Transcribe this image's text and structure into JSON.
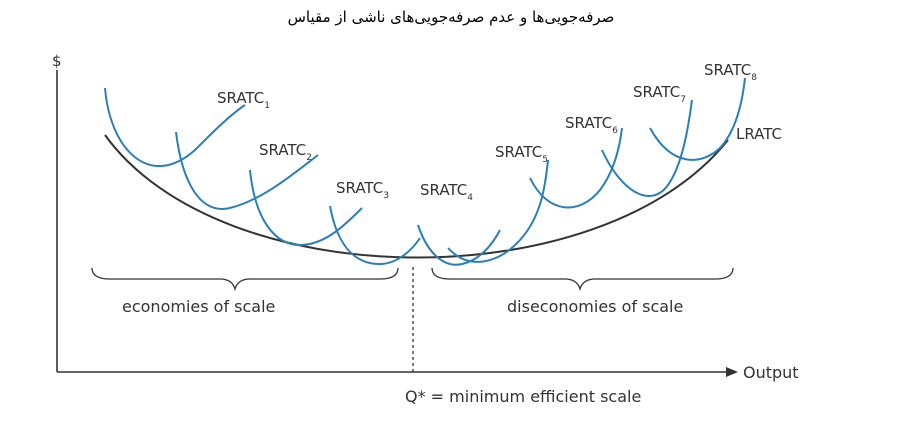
{
  "title": "صرفه‌جویی‌ها و عدم صرفه‌جویی‌های ناشی از مقیاس",
  "axes": {
    "y_label": "$",
    "x_label": "Output",
    "q_star_label": "Q* = minimum efficient scale"
  },
  "regions": {
    "left": "economies of scale",
    "right": "diseconomies of scale"
  },
  "curves": {
    "lratc_label": "LRATC",
    "sratc": [
      {
        "base": "SRATC",
        "sub": "1"
      },
      {
        "base": "SRATC",
        "sub": "2"
      },
      {
        "base": "SRATC",
        "sub": "3"
      },
      {
        "base": "SRATC",
        "sub": "4"
      },
      {
        "base": "SRATC",
        "sub": "5"
      },
      {
        "base": "SRATC",
        "sub": "6"
      },
      {
        "base": "SRATC",
        "sub": "7"
      },
      {
        "base": "SRATC",
        "sub": "8"
      }
    ]
  },
  "colors": {
    "sratc": "#2a7fb8",
    "lratc": "#333333",
    "axis": "#333333"
  }
}
